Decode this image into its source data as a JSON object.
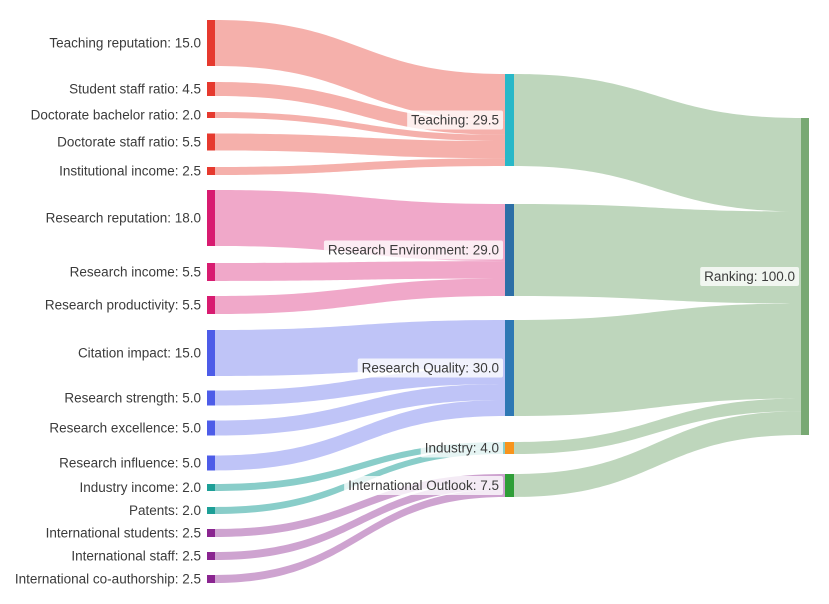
{
  "page": {
    "background": "#ffffff",
    "text_color": "#3b3b3b"
  },
  "chart_data": {
    "type": "sankey",
    "title": "",
    "total": 100.0,
    "legend": "none",
    "nodes": [
      {
        "id": "teaching_reputation",
        "label": "Teaching reputation: 15.0",
        "name": "Teaching reputation",
        "value": 15.0,
        "column": 0,
        "color": "#e6392e"
      },
      {
        "id": "student_staff_ratio",
        "label": "Student staff ratio: 4.5",
        "name": "Student staff ratio",
        "value": 4.5,
        "column": 0,
        "color": "#e6392e"
      },
      {
        "id": "doctorate_bachelor_ratio",
        "label": "Doctorate bachelor ratio: 2.0",
        "name": "Doctorate bachelor ratio",
        "value": 2.0,
        "column": 0,
        "color": "#e6392e"
      },
      {
        "id": "doctorate_staff_ratio",
        "label": "Doctorate staff ratio: 5.5",
        "name": "Doctorate staff ratio",
        "value": 5.5,
        "column": 0,
        "color": "#e6392e"
      },
      {
        "id": "institutional_income",
        "label": "Institutional income: 2.5",
        "name": "Institutional income",
        "value": 2.5,
        "column": 0,
        "color": "#e6392e"
      },
      {
        "id": "research_reputation",
        "label": "Research reputation: 18.0",
        "name": "Research reputation",
        "value": 18.0,
        "column": 0,
        "color": "#d81b70"
      },
      {
        "id": "research_income",
        "label": "Research income: 5.5",
        "name": "Research income",
        "value": 5.5,
        "column": 0,
        "color": "#d81b70"
      },
      {
        "id": "research_productivity",
        "label": "Research productivity: 5.5",
        "name": "Research productivity",
        "value": 5.5,
        "column": 0,
        "color": "#d81b70"
      },
      {
        "id": "citation_impact",
        "label": "Citation impact: 15.0",
        "name": "Citation impact",
        "value": 15.0,
        "column": 0,
        "color": "#4d5ce8"
      },
      {
        "id": "research_strength",
        "label": "Research strength: 5.0",
        "name": "Research strength",
        "value": 5.0,
        "column": 0,
        "color": "#4d5ce8"
      },
      {
        "id": "research_excellence",
        "label": "Research excellence: 5.0",
        "name": "Research excellence",
        "value": 5.0,
        "column": 0,
        "color": "#4d5ce8"
      },
      {
        "id": "research_influence",
        "label": "Research influence: 5.0",
        "name": "Research influence",
        "value": 5.0,
        "column": 0,
        "color": "#4d5ce8"
      },
      {
        "id": "industry_income",
        "label": "Industry income: 2.0",
        "name": "Industry income",
        "value": 2.0,
        "column": 0,
        "color": "#1d9f97"
      },
      {
        "id": "patents",
        "label": "Patents: 2.0",
        "name": "Patents",
        "value": 2.0,
        "column": 0,
        "color": "#1d9f97"
      },
      {
        "id": "international_students",
        "label": "International students: 2.5",
        "name": "International students",
        "value": 2.5,
        "column": 0,
        "color": "#8a2490"
      },
      {
        "id": "international_staff",
        "label": "International staff: 2.5",
        "name": "International staff",
        "value": 2.5,
        "column": 0,
        "color": "#8a2490"
      },
      {
        "id": "international_coauthorship",
        "label": "International co-authorship: 2.5",
        "name": "International co-authorship",
        "value": 2.5,
        "column": 0,
        "color": "#8a2490"
      },
      {
        "id": "teaching",
        "label": "Teaching: 29.5",
        "name": "Teaching",
        "value": 29.5,
        "column": 1,
        "color": "#28b8c8"
      },
      {
        "id": "research_environment",
        "label": "Research Environment: 29.0",
        "name": "Research Environment",
        "value": 29.0,
        "column": 1,
        "color": "#2d6fa6"
      },
      {
        "id": "research_quality",
        "label": "Research Quality: 30.0",
        "name": "Research Quality",
        "value": 30.0,
        "column": 1,
        "color": "#2e78b4"
      },
      {
        "id": "industry",
        "label": "Industry: 4.0",
        "name": "Industry",
        "value": 4.0,
        "column": 1,
        "color": "#f8941c"
      },
      {
        "id": "international_outlook",
        "label": "International Outlook: 7.5",
        "name": "International Outlook",
        "value": 7.5,
        "column": 1,
        "color": "#2f9e38"
      },
      {
        "id": "ranking",
        "label": "Ranking: 100.0",
        "name": "Ranking",
        "value": 100.0,
        "column": 2,
        "color": "#78a973"
      }
    ],
    "links": [
      {
        "source": "teaching_reputation",
        "target": "teaching",
        "value": 15.0,
        "color": "rgba(230,57,46,0.40)"
      },
      {
        "source": "student_staff_ratio",
        "target": "teaching",
        "value": 4.5,
        "color": "rgba(230,57,46,0.40)"
      },
      {
        "source": "doctorate_bachelor_ratio",
        "target": "teaching",
        "value": 2.0,
        "color": "rgba(230,57,46,0.40)"
      },
      {
        "source": "doctorate_staff_ratio",
        "target": "teaching",
        "value": 5.5,
        "color": "rgba(230,57,46,0.40)"
      },
      {
        "source": "institutional_income",
        "target": "teaching",
        "value": 2.5,
        "color": "rgba(230,57,46,0.40)"
      },
      {
        "source": "research_reputation",
        "target": "research_environment",
        "value": 18.0,
        "color": "rgba(216,27,112,0.38)"
      },
      {
        "source": "research_income",
        "target": "research_environment",
        "value": 5.5,
        "color": "rgba(216,27,112,0.38)"
      },
      {
        "source": "research_productivity",
        "target": "research_environment",
        "value": 5.5,
        "color": "rgba(216,27,112,0.38)"
      },
      {
        "source": "citation_impact",
        "target": "research_quality",
        "value": 15.0,
        "color": "rgba(77,92,232,0.36)"
      },
      {
        "source": "research_strength",
        "target": "research_quality",
        "value": 5.0,
        "color": "rgba(77,92,232,0.36)"
      },
      {
        "source": "research_excellence",
        "target": "research_quality",
        "value": 5.0,
        "color": "rgba(77,92,232,0.36)"
      },
      {
        "source": "research_influence",
        "target": "research_quality",
        "value": 5.0,
        "color": "rgba(77,92,232,0.36)"
      },
      {
        "source": "industry_income",
        "target": "industry",
        "value": 2.0,
        "color": "rgba(29,159,151,0.52)"
      },
      {
        "source": "patents",
        "target": "industry",
        "value": 2.0,
        "color": "rgba(29,159,151,0.52)"
      },
      {
        "source": "international_students",
        "target": "international_outlook",
        "value": 2.5,
        "color": "rgba(138,36,144,0.42)"
      },
      {
        "source": "international_staff",
        "target": "international_outlook",
        "value": 2.5,
        "color": "rgba(138,36,144,0.42)"
      },
      {
        "source": "international_coauthorship",
        "target": "international_outlook",
        "value": 2.5,
        "color": "rgba(138,36,144,0.42)"
      },
      {
        "source": "teaching",
        "target": "ranking",
        "value": 29.5,
        "color": "rgba(120,169,115,0.48)"
      },
      {
        "source": "research_environment",
        "target": "ranking",
        "value": 29.0,
        "color": "rgba(120,169,115,0.48)"
      },
      {
        "source": "research_quality",
        "target": "ranking",
        "value": 30.0,
        "color": "rgba(120,169,115,0.48)"
      },
      {
        "source": "industry",
        "target": "ranking",
        "value": 4.0,
        "color": "rgba(120,169,115,0.48)"
      },
      {
        "source": "international_outlook",
        "target": "ranking",
        "value": 7.5,
        "color": "rgba(120,169,115,0.48)"
      }
    ],
    "label_background": "rgba(255,255,255,0.78)"
  }
}
